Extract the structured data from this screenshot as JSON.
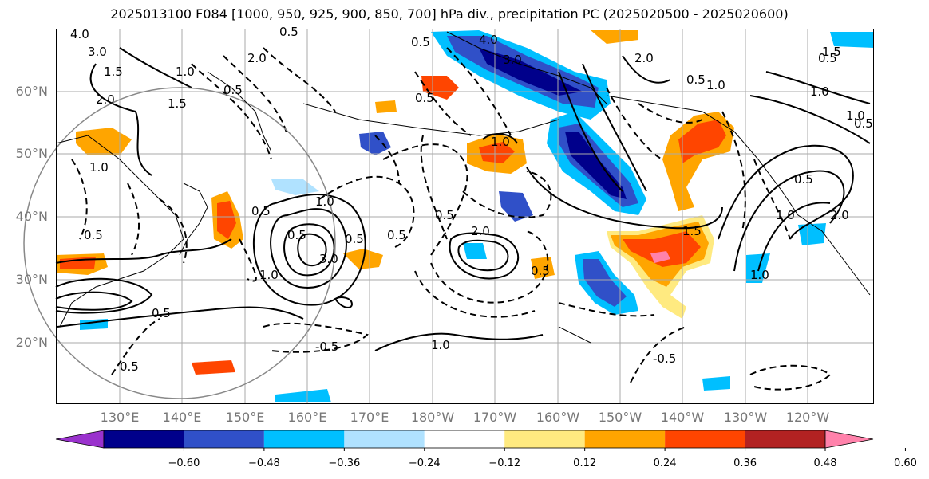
{
  "title": "2025013100 F084 [1000, 950, 925, 900, 850, 700] hPa div., precipitation PC (2025020500 - 2025020600)",
  "lat_labels": [
    "60°N",
    "50°N",
    "40°N",
    "30°N",
    "20°N"
  ],
  "lon_labels": [
    "130°E",
    "140°E",
    "150°E",
    "160°E",
    "170°E",
    "180°W",
    "170°W",
    "160°W",
    "150°W",
    "140°W",
    "130°W",
    "120°W"
  ],
  "colorbar": {
    "ticks": [
      "−0.60",
      "−0.48",
      "−0.36",
      "−0.24",
      "−0.12",
      "0.12",
      "0.24",
      "0.36",
      "0.48",
      "0.60"
    ],
    "colors": [
      "#9a32cd",
      "#00008b",
      "#3050c8",
      "#00bfff",
      "#b0e2ff",
      "#ffffff",
      "#ffea80",
      "#ffa500",
      "#ff4500",
      "#b22222",
      "#ff82ab"
    ]
  },
  "contour_labels": [
    "3.0",
    "1.5",
    "4.0",
    "2.0",
    "1.0",
    "1.5",
    "0.5",
    "0.5",
    "4.0",
    "3.0",
    "0.5",
    "2.0",
    "1.0",
    "0.5",
    "1.0",
    "1.0",
    "0.5",
    "1.0",
    "0.5",
    "2.0",
    "1.0",
    "1.0",
    "3.0",
    "0.5",
    "1.0",
    "0.5",
    "1.0",
    "2.0",
    "1.0",
    "0.5",
    "0.5",
    "0.5",
    "0.5",
    "0.5",
    "0.5",
    "1.0",
    "0.5",
    "-0.5",
    "2.0",
    "-0.5",
    "0.5",
    "1.5",
    "1.5",
    "0.5"
  ]
}
